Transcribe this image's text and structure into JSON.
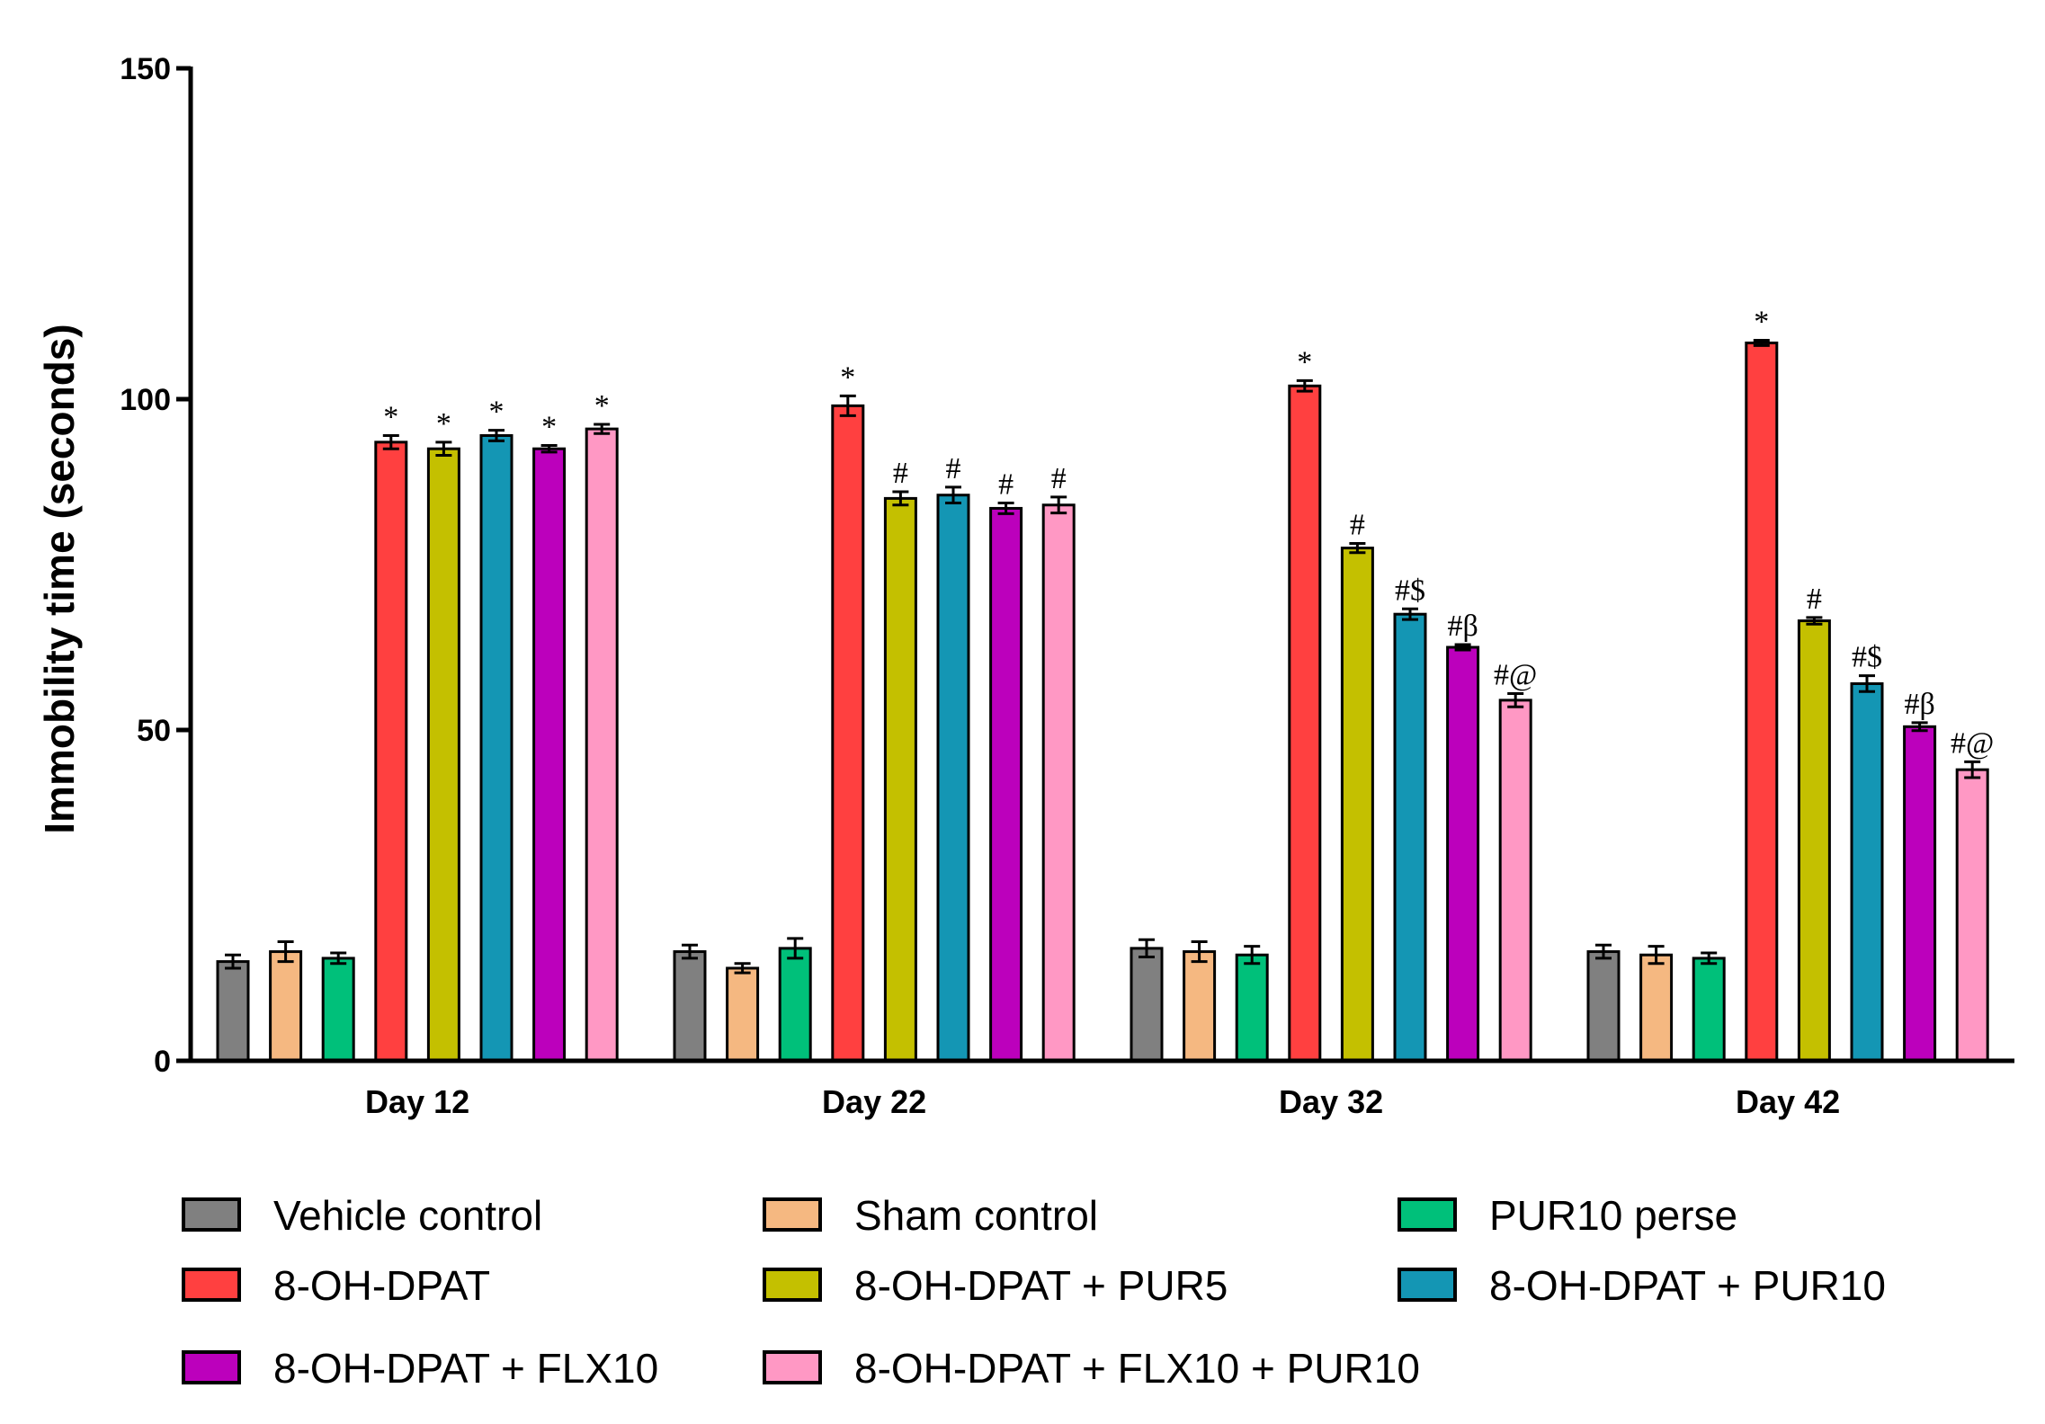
{
  "chart_data": {
    "type": "bar",
    "title": "",
    "xlabel": "",
    "ylabel": "Immobility time (seconds)",
    "ylim": [
      0,
      150
    ],
    "yticks": [
      0,
      50,
      100,
      150
    ],
    "categories": [
      "Day 12",
      "Day 22",
      "Day 32",
      "Day 42"
    ],
    "series": [
      {
        "name": "Vehicle control",
        "color": "#808080",
        "values": [
          15,
          16.5,
          17,
          16.5
        ],
        "errors": [
          1,
          1,
          1.3,
          1
        ],
        "annotations": [
          "",
          "",
          "",
          ""
        ]
      },
      {
        "name": "Sham control",
        "color": "#f5b881",
        "values": [
          16.5,
          14,
          16.5,
          16
        ],
        "errors": [
          1.5,
          0.7,
          1.5,
          1.3
        ],
        "annotations": [
          "",
          "",
          "",
          ""
        ]
      },
      {
        "name": "PUR10 perse",
        "color": "#00c07a",
        "values": [
          15.5,
          17,
          16,
          15.5
        ],
        "errors": [
          0.8,
          1.5,
          1.3,
          0.8
        ],
        "annotations": [
          "",
          "",
          "",
          ""
        ]
      },
      {
        "name": "8-OH-DPAT",
        "color": "#ff4040",
        "values": [
          93.5,
          99,
          102,
          108.5
        ],
        "errors": [
          1,
          1.5,
          0.8,
          0.4
        ],
        "annotations": [
          "*",
          "*",
          "*",
          "*"
        ]
      },
      {
        "name": "8-OH-DPAT + PUR5",
        "color": "#c4c000",
        "values": [
          92.5,
          85,
          77.5,
          66.5
        ],
        "errors": [
          1,
          1,
          0.7,
          0.5
        ],
        "annotations": [
          "*",
          "#",
          "#",
          "#"
        ]
      },
      {
        "name": "8-OH-DPAT + PUR10",
        "color": "#1496b4",
        "values": [
          94.5,
          85.5,
          67.5,
          57
        ],
        "errors": [
          0.8,
          1.2,
          0.8,
          1.2
        ],
        "annotations": [
          "*",
          "#",
          "#$",
          "#$"
        ]
      },
      {
        "name": "8-OH-DPAT + FLX10",
        "color": "#bc00bc",
        "values": [
          92.5,
          83.5,
          62.5,
          50.5
        ],
        "errors": [
          0.5,
          0.8,
          0.4,
          0.6
        ],
        "annotations": [
          "*",
          "#",
          "#β",
          "#β"
        ]
      },
      {
        "name": "8-OH-DPAT + FLX10 + PUR10",
        "color": "#ff98c4",
        "values": [
          95.5,
          84,
          54.5,
          44
        ],
        "errors": [
          0.7,
          1.2,
          1,
          1.2
        ],
        "annotations": [
          "*",
          "#",
          "#@",
          "#@"
        ]
      }
    ],
    "legend": {
      "position": "bottom",
      "columns": 3
    }
  }
}
